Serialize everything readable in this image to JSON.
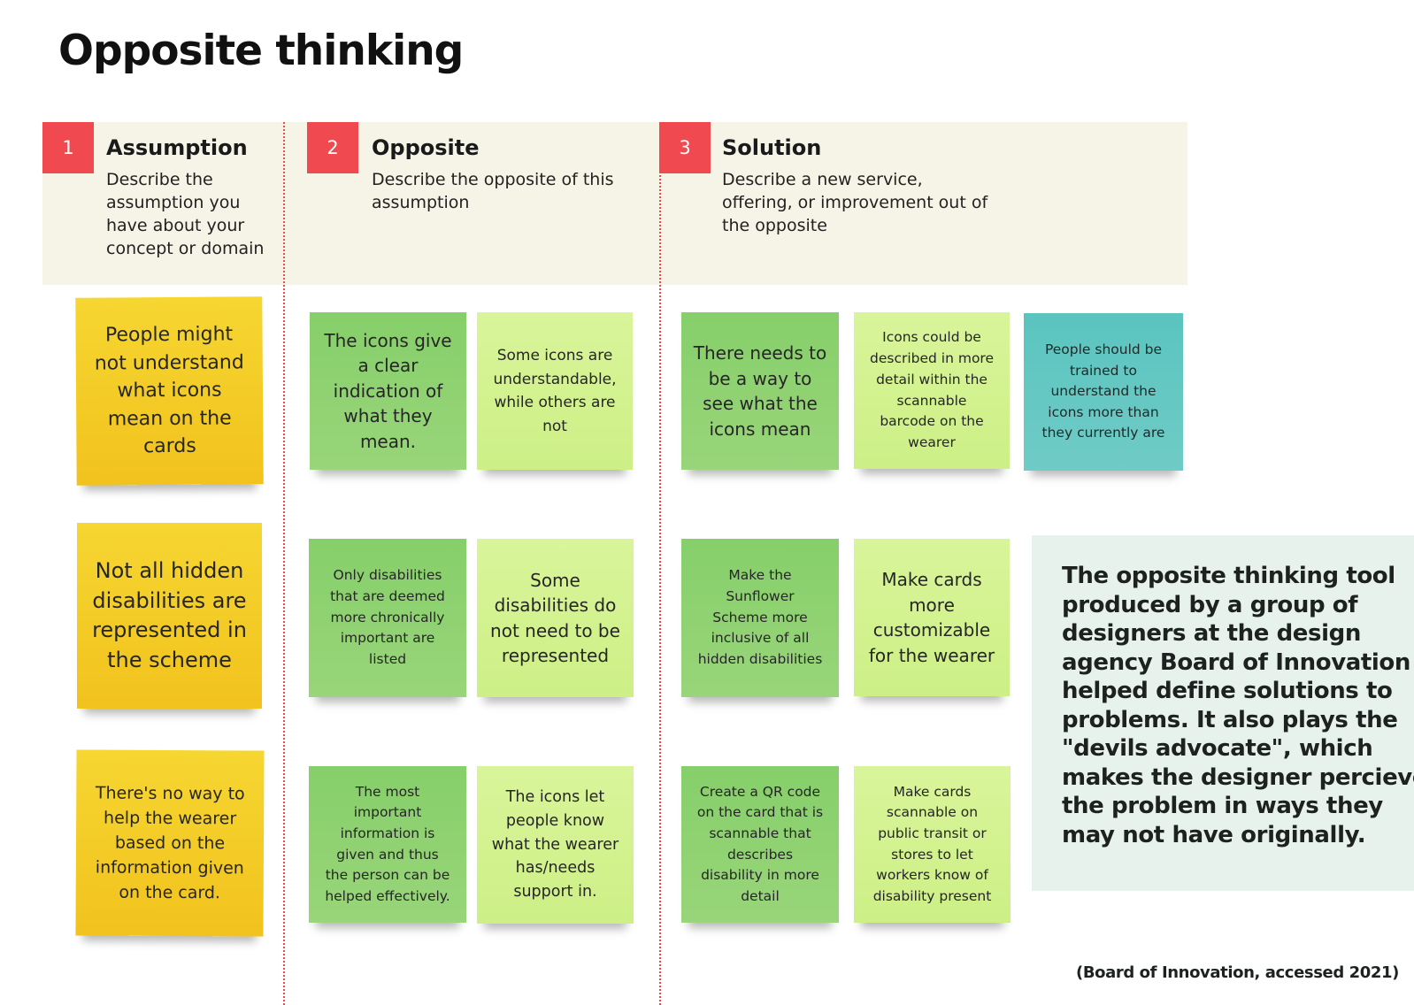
{
  "page": {
    "title": "Opposite thinking"
  },
  "columns": [
    {
      "number": "1",
      "title": "Assumption",
      "description": [
        "Describe the",
        "assumption you",
        "have about your",
        "concept or domain"
      ]
    },
    {
      "number": "2",
      "title": "Opposite",
      "description": [
        "Describe the opposite of this",
        "assumption"
      ]
    },
    {
      "number": "3",
      "title": "Solution",
      "description": [
        "Describe a new service,",
        "offering, or improvement out of",
        "the opposite"
      ]
    }
  ],
  "notes": {
    "assumptions": [
      {
        "lines": [
          "People might",
          "not understand",
          "what icons",
          "mean on the",
          "cards"
        ],
        "color": "yellow"
      },
      {
        "lines": [
          "Not all hidden",
          "disabilities are",
          "represented in",
          "the scheme"
        ],
        "color": "yellow"
      },
      {
        "lines": [
          "There's no way to",
          "help the wearer",
          "based on the",
          "information given",
          "on the card."
        ],
        "color": "yellow"
      }
    ],
    "opposites": [
      {
        "lines": [
          "The icons give",
          "a clear",
          "indication of",
          "what they",
          "mean."
        ],
        "color": "green"
      },
      {
        "lines": [
          "Some icons are",
          "understandable,",
          "while others are",
          "not"
        ],
        "color": "lime"
      },
      {
        "lines": [
          "Only disabilities",
          "that are deemed",
          "more chronically",
          "important are",
          "listed"
        ],
        "color": "green"
      },
      {
        "lines": [
          "Some",
          "disabilities do",
          "not need to be",
          "represented"
        ],
        "color": "lime"
      },
      {
        "lines": [
          "The most",
          "important",
          "information is",
          "given and thus",
          "the person can be",
          "helped effectively."
        ],
        "color": "green"
      },
      {
        "lines": [
          "The icons let",
          "people know",
          "what the wearer",
          "has/needs",
          "support in."
        ],
        "color": "lime"
      }
    ],
    "solutions": [
      {
        "lines": [
          "There needs to",
          "be a way to",
          "see what the",
          "icons mean"
        ],
        "color": "green"
      },
      {
        "lines": [
          "Icons could be",
          "described in more",
          "detail within the",
          "scannable",
          "barcode on the",
          "wearer"
        ],
        "color": "lime"
      },
      {
        "lines": [
          "People should be",
          "trained to",
          "understand the",
          "icons more than",
          "they currently are"
        ],
        "color": "teal"
      },
      {
        "lines": [
          "Make the",
          "Sunflower",
          "Scheme more",
          "inclusive of all",
          "hidden disabilities"
        ],
        "color": "green"
      },
      {
        "lines": [
          "Make cards",
          "more",
          "customizable",
          "for the wearer"
        ],
        "color": "lime"
      },
      {
        "lines": [
          "Create a QR code",
          "on the card that is",
          "scannable that",
          "describes",
          "disability in more",
          "detail"
        ],
        "color": "green"
      },
      {
        "lines": [
          "Make cards",
          "scannable on",
          "public transit or",
          "stores to let",
          "workers know of",
          "disability present"
        ],
        "color": "lime"
      }
    ]
  },
  "callout": {
    "lines": [
      "The opposite thinking tool",
      "produced by a group of",
      "designers at the design",
      "agency Board of Innovation",
      "helped define solutions to",
      "problems. It also plays the",
      "\"devils advocate\", which",
      "makes the designer percieve",
      "the problem in ways they",
      "may not have originally."
    ]
  },
  "source": "(Board of Innovation, accessed 2021)",
  "colors": {
    "accent_red": "#f04a50",
    "header_band": "#f5f4e6",
    "sticky_yellow": "#f4cc27",
    "sticky_green": "#8fd271",
    "sticky_lime": "#d3f290",
    "sticky_teal": "#63c7c2",
    "callout_bg": "#e6f2eb"
  }
}
